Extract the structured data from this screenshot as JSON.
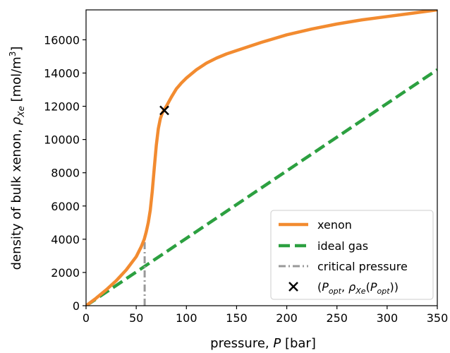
{
  "chart_data": {
    "type": "line",
    "xlabel": {
      "prefix": "pressure, ",
      "symbol": "P",
      "suffix": " [bar]"
    },
    "ylabel": {
      "prefix": "density of bulk xenon, ",
      "symbol": "ρ",
      "sub": "Xe",
      "suffix": " [mol/m",
      "sup": "3",
      "end": "]"
    },
    "xlim": [
      0,
      350
    ],
    "ylim": [
      0,
      17800
    ],
    "xticks": [
      0,
      50,
      100,
      150,
      200,
      250,
      300,
      350
    ],
    "yticks": [
      0,
      2000,
      4000,
      6000,
      8000,
      10000,
      12000,
      14000,
      16000
    ],
    "grid": false,
    "legend_position": "bottom-right",
    "series": [
      {
        "name": "xenon",
        "color": "#f28b30",
        "style": "solid",
        "x": [
          0,
          10,
          20,
          30,
          40,
          50,
          55,
          58,
          60,
          62,
          64,
          66,
          68,
          70,
          72,
          74,
          76,
          78,
          80,
          85,
          90,
          95,
          100,
          110,
          120,
          130,
          140,
          150,
          175,
          200,
          225,
          250,
          275,
          300,
          325,
          350
        ],
        "y": [
          0,
          450,
          950,
          1500,
          2150,
          2950,
          3550,
          4000,
          4450,
          5000,
          5750,
          6900,
          8300,
          9650,
          10650,
          11250,
          11600,
          11800,
          12000,
          12550,
          13050,
          13400,
          13700,
          14200,
          14600,
          14900,
          15150,
          15350,
          15850,
          16300,
          16650,
          16950,
          17200,
          17400,
          17600,
          17800
        ]
      },
      {
        "name": "ideal gas",
        "color": "#2ca040",
        "style": "dashed",
        "x": [
          0,
          350
        ],
        "y": [
          0,
          14200
        ]
      },
      {
        "name": "critical pressure",
        "color": "#999999",
        "style": "dashdot",
        "x": [
          58.4,
          58.4
        ],
        "y": [
          0,
          4000
        ]
      }
    ],
    "marker": {
      "legend_label": {
        "open": "(",
        "p": "P",
        "p_sub": "opt",
        "sep": ", ",
        "rho": "ρ",
        "rho_sub": "Xe",
        "mid": "(",
        "p2": "P",
        "p2_sub": "opt",
        "close": "))"
      },
      "x": 78,
      "y": 11750,
      "symbol": "x",
      "color": "#000000"
    }
  }
}
